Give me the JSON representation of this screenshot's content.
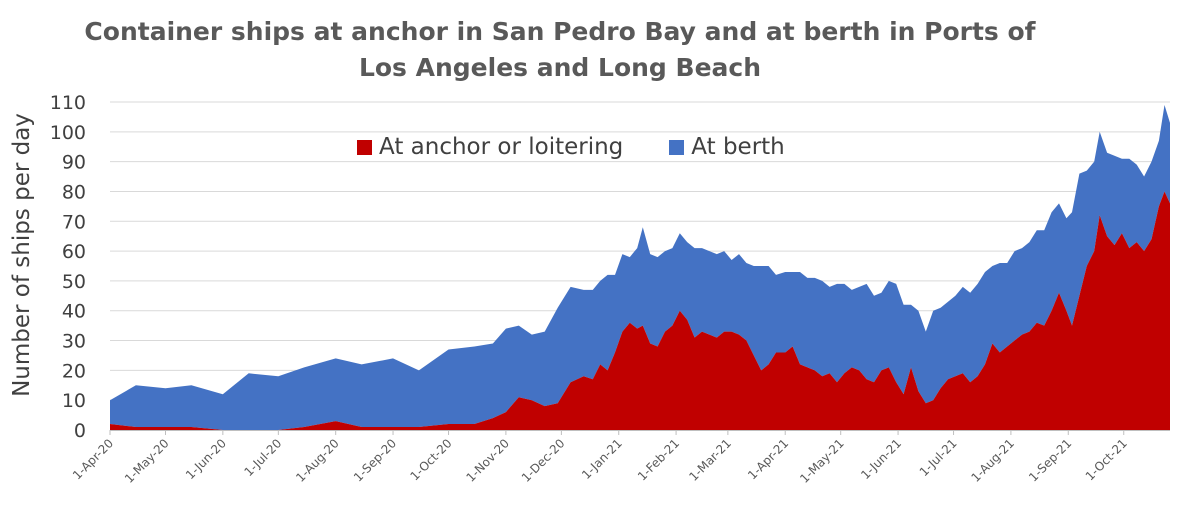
{
  "chart_data": {
    "type": "area",
    "stacked": true,
    "title_lines": [
      "Container ships at anchor in San Pedro Bay and at berth in Ports of",
      "Los Angeles and Long Beach"
    ],
    "xlabel": "",
    "ylabel": "Number of ships per day",
    "ylim": [
      0,
      110
    ],
    "yticks": [
      0,
      10,
      20,
      30,
      40,
      50,
      60,
      70,
      80,
      90,
      100,
      110
    ],
    "grid": true,
    "legend_position": "top-center",
    "xlim": [
      "2020-04-01",
      "2021-10-26"
    ],
    "x_tick_labels": [
      {
        "date": "2020-04-01",
        "label": "1-Apr-20"
      },
      {
        "date": "2020-05-01",
        "label": "1-May-20"
      },
      {
        "date": "2020-06-01",
        "label": "1-Jun-20"
      },
      {
        "date": "2020-07-01",
        "label": "1-Jul-20"
      },
      {
        "date": "2020-08-01",
        "label": "1-Aug-20"
      },
      {
        "date": "2020-09-01",
        "label": "1-Sep-20"
      },
      {
        "date": "2020-10-01",
        "label": "1-Oct-20"
      },
      {
        "date": "2020-11-01",
        "label": "1-Nov-20"
      },
      {
        "date": "2020-12-01",
        "label": "1-Dec-20"
      },
      {
        "date": "2021-01-01",
        "label": "1-Jan-21"
      },
      {
        "date": "2021-02-01",
        "label": "1-Feb-21"
      },
      {
        "date": "2021-03-01",
        "label": "1-Mar-21"
      },
      {
        "date": "2021-04-01",
        "label": "1-Apr-21"
      },
      {
        "date": "2021-05-01",
        "label": "1-May-21"
      },
      {
        "date": "2021-06-01",
        "label": "1-Jun-21"
      },
      {
        "date": "2021-07-01",
        "label": "1-Jul-21"
      },
      {
        "date": "2021-08-01",
        "label": "1-Aug-21"
      },
      {
        "date": "2021-09-01",
        "label": "1-Sep-21"
      },
      {
        "date": "2021-10-01",
        "label": "1-Oct-21"
      }
    ],
    "series": [
      {
        "name": "At anchor or loitering",
        "color": "#c00000",
        "points": [
          [
            "2020-04-01",
            2
          ],
          [
            "2020-04-15",
            1
          ],
          [
            "2020-05-01",
            1
          ],
          [
            "2020-05-15",
            1
          ],
          [
            "2020-06-01",
            0
          ],
          [
            "2020-06-15",
            0
          ],
          [
            "2020-07-01",
            0
          ],
          [
            "2020-07-15",
            1
          ],
          [
            "2020-08-01",
            3
          ],
          [
            "2020-08-15",
            1
          ],
          [
            "2020-09-01",
            1
          ],
          [
            "2020-09-15",
            1
          ],
          [
            "2020-10-01",
            2
          ],
          [
            "2020-10-15",
            2
          ],
          [
            "2020-10-25",
            4
          ],
          [
            "2020-11-01",
            6
          ],
          [
            "2020-11-08",
            11
          ],
          [
            "2020-11-15",
            10
          ],
          [
            "2020-11-22",
            8
          ],
          [
            "2020-11-29",
            9
          ],
          [
            "2020-12-06",
            16
          ],
          [
            "2020-12-13",
            18
          ],
          [
            "2020-12-18",
            17
          ],
          [
            "2020-12-22",
            22
          ],
          [
            "2020-12-26",
            20
          ],
          [
            "2020-12-30",
            26
          ],
          [
            "2021-01-03",
            33
          ],
          [
            "2021-01-07",
            36
          ],
          [
            "2021-01-11",
            34
          ],
          [
            "2021-01-14",
            35
          ],
          [
            "2021-01-18",
            29
          ],
          [
            "2021-01-22",
            28
          ],
          [
            "2021-01-26",
            33
          ],
          [
            "2021-01-30",
            35
          ],
          [
            "2021-02-03",
            40
          ],
          [
            "2021-02-07",
            37
          ],
          [
            "2021-02-11",
            31
          ],
          [
            "2021-02-15",
            33
          ],
          [
            "2021-02-19",
            32
          ],
          [
            "2021-02-23",
            31
          ],
          [
            "2021-02-27",
            33
          ],
          [
            "2021-03-03",
            33
          ],
          [
            "2021-03-07",
            32
          ],
          [
            "2021-03-11",
            30
          ],
          [
            "2021-03-15",
            25
          ],
          [
            "2021-03-19",
            20
          ],
          [
            "2021-03-23",
            22
          ],
          [
            "2021-03-27",
            26
          ],
          [
            "2021-04-01",
            26
          ],
          [
            "2021-04-05",
            28
          ],
          [
            "2021-04-09",
            22
          ],
          [
            "2021-04-13",
            21
          ],
          [
            "2021-04-17",
            20
          ],
          [
            "2021-04-21",
            18
          ],
          [
            "2021-04-25",
            19
          ],
          [
            "2021-04-29",
            16
          ],
          [
            "2021-05-03",
            19
          ],
          [
            "2021-05-07",
            21
          ],
          [
            "2021-05-11",
            20
          ],
          [
            "2021-05-15",
            17
          ],
          [
            "2021-05-19",
            16
          ],
          [
            "2021-05-23",
            20
          ],
          [
            "2021-05-27",
            21
          ],
          [
            "2021-05-31",
            16
          ],
          [
            "2021-06-04",
            12
          ],
          [
            "2021-06-08",
            21
          ],
          [
            "2021-06-12",
            13
          ],
          [
            "2021-06-16",
            9
          ],
          [
            "2021-06-20",
            10
          ],
          [
            "2021-06-24",
            14
          ],
          [
            "2021-06-28",
            17
          ],
          [
            "2021-07-02",
            18
          ],
          [
            "2021-07-06",
            19
          ],
          [
            "2021-07-10",
            16
          ],
          [
            "2021-07-14",
            18
          ],
          [
            "2021-07-18",
            22
          ],
          [
            "2021-07-22",
            29
          ],
          [
            "2021-07-26",
            26
          ],
          [
            "2021-07-30",
            28
          ],
          [
            "2021-08-03",
            30
          ],
          [
            "2021-08-07",
            32
          ],
          [
            "2021-08-11",
            33
          ],
          [
            "2021-08-15",
            36
          ],
          [
            "2021-08-19",
            35
          ],
          [
            "2021-08-23",
            40
          ],
          [
            "2021-08-27",
            46
          ],
          [
            "2021-08-31",
            40
          ],
          [
            "2021-09-03",
            35
          ],
          [
            "2021-09-07",
            45
          ],
          [
            "2021-09-11",
            55
          ],
          [
            "2021-09-15",
            60
          ],
          [
            "2021-09-18",
            72
          ],
          [
            "2021-09-22",
            65
          ],
          [
            "2021-09-26",
            62
          ],
          [
            "2021-09-30",
            66
          ],
          [
            "2021-10-04",
            61
          ],
          [
            "2021-10-08",
            63
          ],
          [
            "2021-10-12",
            60
          ],
          [
            "2021-10-16",
            64
          ],
          [
            "2021-10-20",
            75
          ],
          [
            "2021-10-23",
            80
          ],
          [
            "2021-10-26",
            76
          ]
        ]
      },
      {
        "name": "At berth",
        "color": "#4472c4",
        "points": [
          [
            "2020-04-01",
            8
          ],
          [
            "2020-04-15",
            14
          ],
          [
            "2020-05-01",
            13
          ],
          [
            "2020-05-15",
            14
          ],
          [
            "2020-06-01",
            12
          ],
          [
            "2020-06-15",
            19
          ],
          [
            "2020-07-01",
            18
          ],
          [
            "2020-07-15",
            20
          ],
          [
            "2020-08-01",
            21
          ],
          [
            "2020-08-15",
            21
          ],
          [
            "2020-09-01",
            23
          ],
          [
            "2020-09-15",
            19
          ],
          [
            "2020-10-01",
            25
          ],
          [
            "2020-10-15",
            26
          ],
          [
            "2020-10-25",
            25
          ],
          [
            "2020-11-01",
            28
          ],
          [
            "2020-11-08",
            24
          ],
          [
            "2020-11-15",
            22
          ],
          [
            "2020-11-22",
            25
          ],
          [
            "2020-11-29",
            32
          ],
          [
            "2020-12-06",
            32
          ],
          [
            "2020-12-13",
            29
          ],
          [
            "2020-12-18",
            30
          ],
          [
            "2020-12-22",
            28
          ],
          [
            "2020-12-26",
            32
          ],
          [
            "2020-12-30",
            26
          ],
          [
            "2021-01-03",
            26
          ],
          [
            "2021-01-07",
            22
          ],
          [
            "2021-01-11",
            27
          ],
          [
            "2021-01-14",
            33
          ],
          [
            "2021-01-18",
            30
          ],
          [
            "2021-01-22",
            30
          ],
          [
            "2021-01-26",
            27
          ],
          [
            "2021-01-30",
            26
          ],
          [
            "2021-02-03",
            26
          ],
          [
            "2021-02-07",
            26
          ],
          [
            "2021-02-11",
            30
          ],
          [
            "2021-02-15",
            28
          ],
          [
            "2021-02-19",
            28
          ],
          [
            "2021-02-23",
            28
          ],
          [
            "2021-02-27",
            27
          ],
          [
            "2021-03-03",
            24
          ],
          [
            "2021-03-07",
            27
          ],
          [
            "2021-03-11",
            26
          ],
          [
            "2021-03-15",
            30
          ],
          [
            "2021-03-19",
            35
          ],
          [
            "2021-03-23",
            33
          ],
          [
            "2021-03-27",
            26
          ],
          [
            "2021-04-01",
            27
          ],
          [
            "2021-04-05",
            25
          ],
          [
            "2021-04-09",
            31
          ],
          [
            "2021-04-13",
            30
          ],
          [
            "2021-04-17",
            31
          ],
          [
            "2021-04-21",
            32
          ],
          [
            "2021-04-25",
            29
          ],
          [
            "2021-04-29",
            33
          ],
          [
            "2021-05-03",
            30
          ],
          [
            "2021-05-07",
            26
          ],
          [
            "2021-05-11",
            28
          ],
          [
            "2021-05-15",
            32
          ],
          [
            "2021-05-19",
            29
          ],
          [
            "2021-05-23",
            26
          ],
          [
            "2021-05-27",
            29
          ],
          [
            "2021-05-31",
            33
          ],
          [
            "2021-06-04",
            30
          ],
          [
            "2021-06-08",
            21
          ],
          [
            "2021-06-12",
            27
          ],
          [
            "2021-06-16",
            24
          ],
          [
            "2021-06-20",
            30
          ],
          [
            "2021-06-24",
            27
          ],
          [
            "2021-06-28",
            26
          ],
          [
            "2021-07-02",
            27
          ],
          [
            "2021-07-06",
            29
          ],
          [
            "2021-07-10",
            30
          ],
          [
            "2021-07-14",
            31
          ],
          [
            "2021-07-18",
            31
          ],
          [
            "2021-07-22",
            26
          ],
          [
            "2021-07-26",
            30
          ],
          [
            "2021-07-30",
            28
          ],
          [
            "2021-08-03",
            30
          ],
          [
            "2021-08-07",
            29
          ],
          [
            "2021-08-11",
            30
          ],
          [
            "2021-08-15",
            31
          ],
          [
            "2021-08-19",
            32
          ],
          [
            "2021-08-23",
            33
          ],
          [
            "2021-08-27",
            30
          ],
          [
            "2021-08-31",
            31
          ],
          [
            "2021-09-03",
            38
          ],
          [
            "2021-09-07",
            41
          ],
          [
            "2021-09-11",
            32
          ],
          [
            "2021-09-15",
            30
          ],
          [
            "2021-09-18",
            28
          ],
          [
            "2021-09-22",
            28
          ],
          [
            "2021-09-26",
            30
          ],
          [
            "2021-09-30",
            25
          ],
          [
            "2021-10-04",
            30
          ],
          [
            "2021-10-08",
            26
          ],
          [
            "2021-10-12",
            25
          ],
          [
            "2021-10-16",
            26
          ],
          [
            "2021-10-20",
            22
          ],
          [
            "2021-10-23",
            29
          ],
          [
            "2021-10-26",
            27
          ]
        ]
      }
    ]
  }
}
